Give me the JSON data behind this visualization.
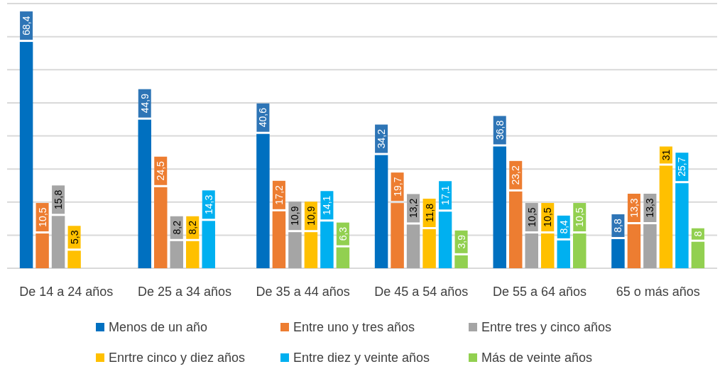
{
  "chart_data": {
    "type": "bar",
    "categories": [
      "De 14 a 24 años",
      "De 25 a 34 años",
      "De 35 a 44 años",
      "De 45 a 54 años",
      "De 55 a 64 años",
      "65 o más años"
    ],
    "series": [
      {
        "name": "Menos de un año",
        "color": "#0070c0",
        "values": [
          68.4,
          44.9,
          40.6,
          34.2,
          36.8,
          8.8
        ],
        "value_labels": [
          "68,4",
          "44,9",
          "40,6",
          "34,2",
          "36,8",
          "8,8"
        ]
      },
      {
        "name": "Entre uno y tres años",
        "color": "#ed7d31",
        "values": [
          10.5,
          24.5,
          17.2,
          19.7,
          23.2,
          13.3
        ],
        "value_labels": [
          "10,5",
          "24,5",
          "17,2",
          "19,7",
          "23,2",
          "13,3"
        ]
      },
      {
        "name": "Entre tres y cinco años",
        "color": "#a5a5a5",
        "values": [
          15.8,
          8.2,
          10.9,
          13.2,
          10.5,
          13.3
        ],
        "value_labels": [
          "15,8",
          "8,2",
          "10,9",
          "13,2",
          "10,5",
          "13,3"
        ]
      },
      {
        "name": "Enrtre cinco y diez años",
        "color": "#ffc000",
        "values": [
          5.3,
          8.2,
          10.9,
          11.8,
          10.5,
          31
        ],
        "value_labels": [
          "5,3",
          "8,2",
          "10,9",
          "11,8",
          "10,5",
          "31"
        ]
      },
      {
        "name": "Entre diez y veinte años",
        "color": "#00b0f0",
        "values": [
          null,
          14.3,
          14.1,
          17.1,
          8.4,
          25.7
        ],
        "value_labels": [
          null,
          "14,3",
          "14,1",
          "17,1",
          "8,4",
          "25,7"
        ]
      },
      {
        "name": "Más de veinte años",
        "color": "#92d050",
        "values": [
          null,
          null,
          6.3,
          3.9,
          10.5,
          8
        ],
        "value_labels": [
          null,
          null,
          "6,3",
          "3,9",
          "10,5",
          "8"
        ]
      }
    ],
    "ylim": [
      0,
      80
    ],
    "yticks": [
      {
        "value": 0,
        "label": null
      },
      {
        "value": 10,
        "label": null
      },
      {
        "value": 20,
        "label": null
      },
      {
        "value": 30,
        "label": null
      },
      {
        "value": 40,
        "label": null
      },
      {
        "value": 50,
        "label": null
      },
      {
        "value": 60,
        "label": null
      },
      {
        "value": 70,
        "label": null
      },
      {
        "value": 80,
        "label": null
      }
    ],
    "grid": "y",
    "tick_labels": "x",
    "legend": "bottom"
  }
}
